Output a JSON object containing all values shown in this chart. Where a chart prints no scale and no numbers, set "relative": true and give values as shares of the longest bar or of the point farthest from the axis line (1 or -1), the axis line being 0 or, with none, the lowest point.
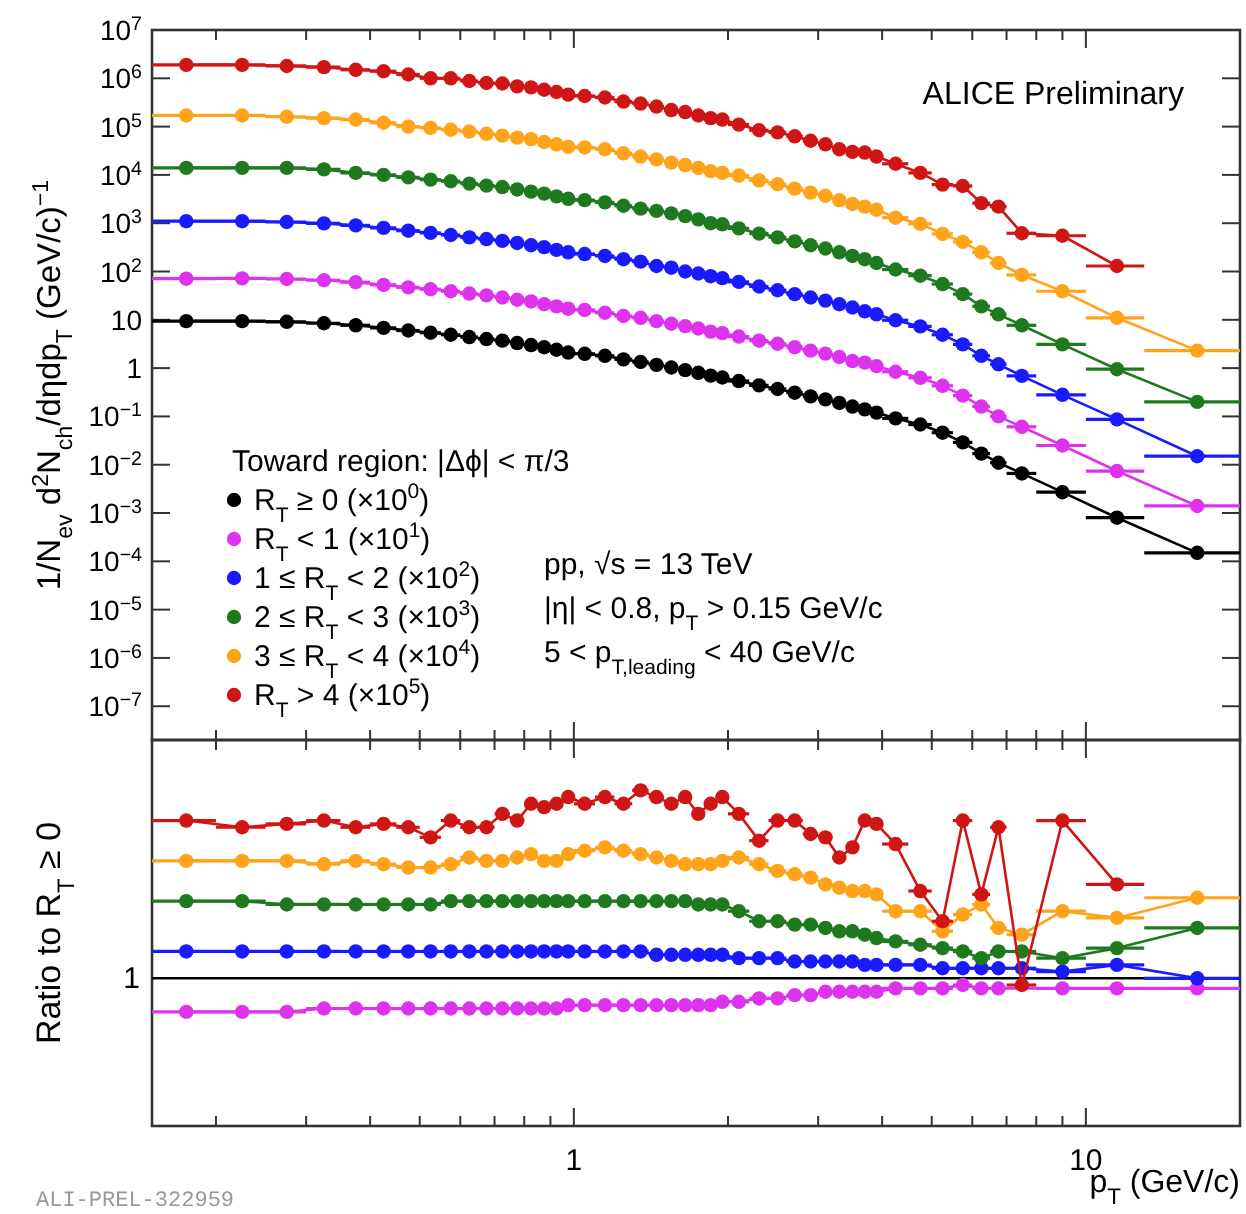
{
  "chart_data": [
    {
      "type": "line",
      "marker": "circle",
      "log": "xy",
      "tick_labels": "y",
      "legend": "bottom left",
      "ylabel": "1/N$_{ev}$ d$^{2}$N$_{ch}$/dηdp$_{T}$ (GeV/c)$^{−1}$",
      "legend_title": "Toward region: |Δϕ| < π/3",
      "annotations": [
        "ALICE Preliminary",
        "pp, √s = 13 TeV",
        "|η| < 0.8, p$_{T}$ > 0.15 GeV/c",
        "5 < p$_{T,leading}$ < 40 GeV/c"
      ],
      "xlim": [
        0.15,
        20
      ],
      "xticks": [
        {
          "value": 0.2,
          "label": null
        },
        {
          "value": 0.3,
          "label": null
        },
        {
          "value": 0.4,
          "label": null
        },
        {
          "value": 0.5,
          "label": null
        },
        {
          "value": 0.6,
          "label": null
        },
        {
          "value": 0.7,
          "label": null
        },
        {
          "value": 0.8,
          "label": null
        },
        {
          "value": 0.9,
          "label": null
        },
        {
          "value": 1,
          "label": null
        },
        {
          "value": 2,
          "label": null
        },
        {
          "value": 3,
          "label": null
        },
        {
          "value": 4,
          "label": null
        },
        {
          "value": 5,
          "label": null
        },
        {
          "value": 6,
          "label": null
        },
        {
          "value": 7,
          "label": null
        },
        {
          "value": 8,
          "label": null
        },
        {
          "value": 9,
          "label": null
        },
        {
          "value": 10,
          "label": null
        }
      ],
      "ylim": [
        2e-08,
        10000000.0
      ],
      "yticks": [
        {
          "value": 1e-07,
          "label": "10$^{−7}$"
        },
        {
          "value": 1e-06,
          "label": "10$^{−6}$"
        },
        {
          "value": 1e-05,
          "label": "10$^{−5}$"
        },
        {
          "value": 0.0001,
          "label": "10$^{−4}$"
        },
        {
          "value": 0.001,
          "label": "10$^{−3}$"
        },
        {
          "value": 0.01,
          "label": "10$^{−2}$"
        },
        {
          "value": 0.1,
          "label": "10$^{−1}$"
        },
        {
          "value": 1,
          "label": "1"
        },
        {
          "value": 10,
          "label": "10"
        },
        {
          "value": 100,
          "label": "10$^{2}$"
        },
        {
          "value": 1000,
          "label": "10$^{3}$"
        },
        {
          "value": 10000,
          "label": "10$^{4}$"
        },
        {
          "value": 100000,
          "label": "10$^{5}$"
        },
        {
          "value": 1000000,
          "label": "10$^{6}$"
        },
        {
          "value": 10000000,
          "label": "10$^{7}$"
        }
      ],
      "x": [
        0.175,
        0.225,
        0.275,
        0.325,
        0.375,
        0.425,
        0.475,
        0.525,
        0.575,
        0.625,
        0.675,
        0.725,
        0.775,
        0.825,
        0.875,
        0.925,
        0.975,
        1.05,
        1.15,
        1.25,
        1.35,
        1.45,
        1.55,
        1.65,
        1.75,
        1.85,
        1.95,
        2.1,
        2.3,
        2.5,
        2.7,
        2.9,
        3.1,
        3.3,
        3.5,
        3.7,
        3.9,
        4.25,
        4.75,
        5.25,
        5.75,
        6.25,
        6.75,
        7.5,
        9,
        11.5,
        16.5
      ],
      "series": [
        {
          "name": "R$_{T}$ ≥ 0 (×10$^{0}$)",
          "color": "#000000",
          "values": [
            9.4,
            9.4,
            9.1,
            8.5,
            7.7,
            6.8,
            6.0,
            5.4,
            4.9,
            4.4,
            4.0,
            3.7,
            3.3,
            3.0,
            2.7,
            2.4,
            2.1,
            1.98,
            1.8,
            1.52,
            1.34,
            1.17,
            1.03,
            0.91,
            0.8,
            0.7,
            0.64,
            0.54,
            0.44,
            0.37,
            0.31,
            0.26,
            0.225,
            0.19,
            0.16,
            0.14,
            0.12,
            0.091,
            0.068,
            0.046,
            0.029,
            0.017,
            0.011,
            0.0066,
            0.0027,
            0.0008,
            0.00015
          ],
          "xerrors": [
            0.025,
            0.025,
            0.025,
            0.025,
            0.025,
            0.025,
            0.025,
            0.025,
            0.025,
            0.025,
            0.025,
            0.025,
            0.025,
            0.025,
            0.025,
            0.025,
            0.025,
            0.05,
            0.05,
            0.05,
            0.05,
            0.05,
            0.05,
            0.05,
            0.05,
            0.05,
            0.05,
            0.1,
            0.1,
            0.1,
            0.1,
            0.1,
            0.1,
            0.1,
            0.1,
            0.1,
            0.1,
            0.25,
            0.25,
            0.25,
            0.25,
            0.25,
            0.25,
            0.5,
            1,
            1.5,
            3.5
          ]
        },
        {
          "name": "R$_{T}$ < 1 (×10$^{1}$)",
          "color": "#dd33ee",
          "values": [
            71,
            72,
            70,
            66,
            60,
            53,
            47,
            43,
            39,
            35,
            32,
            29,
            26,
            24,
            21,
            19,
            17,
            16,
            14,
            12,
            11,
            9.4,
            8.3,
            7.4,
            6.6,
            5.7,
            5.3,
            4.5,
            3.7,
            3.2,
            2.7,
            2.3,
            2.0,
            1.7,
            1.4,
            1.3,
            1.1,
            0.84,
            0.63,
            0.43,
            0.27,
            0.16,
            0.1,
            0.061,
            0.025,
            0.0074,
            0.0014
          ],
          "xerrors": [
            0.025,
            0.025,
            0.025,
            0.025,
            0.025,
            0.025,
            0.025,
            0.025,
            0.025,
            0.025,
            0.025,
            0.025,
            0.025,
            0.025,
            0.025,
            0.025,
            0.025,
            0.05,
            0.05,
            0.05,
            0.05,
            0.05,
            0.05,
            0.05,
            0.05,
            0.05,
            0.05,
            0.1,
            0.1,
            0.1,
            0.1,
            0.1,
            0.1,
            0.1,
            0.1,
            0.1,
            0.1,
            0.25,
            0.25,
            0.25,
            0.25,
            0.25,
            0.25,
            0.5,
            1,
            1.5,
            3.5
          ]
        },
        {
          "name": "1 ≤ R$_{T}$ < 2 (×10$^{2}$)",
          "color": "#1a1aff",
          "values": [
            1100,
            1100,
            1060,
            990,
            900,
            800,
            700,
            630,
            570,
            510,
            470,
            430,
            390,
            350,
            320,
            280,
            250,
            230,
            210,
            180,
            160,
            130,
            120,
            100,
            91,
            80,
            73,
            61,
            49,
            41,
            34,
            29,
            25,
            21,
            18,
            15,
            13,
            9.8,
            7.3,
            4.9,
            3.1,
            1.8,
            1.2,
            0.69,
            0.28,
            0.087,
            0.015
          ],
          "xerrors": [
            0.025,
            0.025,
            0.025,
            0.025,
            0.025,
            0.025,
            0.025,
            0.025,
            0.025,
            0.025,
            0.025,
            0.025,
            0.025,
            0.025,
            0.025,
            0.025,
            0.025,
            0.05,
            0.05,
            0.05,
            0.05,
            0.05,
            0.05,
            0.05,
            0.05,
            0.05,
            0.05,
            0.1,
            0.1,
            0.1,
            0.1,
            0.1,
            0.1,
            0.1,
            0.1,
            0.1,
            0.1,
            0.25,
            0.25,
            0.25,
            0.25,
            0.25,
            0.25,
            0.5,
            1,
            1.5,
            3.5
          ]
        },
        {
          "name": "2 ≤ R$_{T}$ < 3 (×10$^{3}$)",
          "color": "#1f7a1f",
          "values": [
            14000,
            14000,
            14000,
            13000,
            11000,
            10000,
            8900,
            8000,
            7400,
            6600,
            6000,
            5600,
            5000,
            4500,
            4100,
            3600,
            3200,
            3000,
            2700,
            2300,
            2000,
            1800,
            1600,
            1400,
            1200,
            1000,
            950,
            780,
            610,
            510,
            420,
            350,
            300,
            250,
            210,
            180,
            150,
            110,
            82,
            55,
            34,
            19,
            13,
            7.7,
            3.1,
            0.95,
            0.2
          ],
          "xerrors": [
            0.025,
            0.025,
            0.025,
            0.025,
            0.025,
            0.025,
            0.025,
            0.025,
            0.025,
            0.025,
            0.025,
            0.025,
            0.025,
            0.025,
            0.025,
            0.025,
            0.025,
            0.05,
            0.05,
            0.05,
            0.05,
            0.05,
            0.05,
            0.05,
            0.05,
            0.05,
            0.05,
            0.1,
            0.1,
            0.1,
            0.1,
            0.1,
            0.1,
            0.1,
            0.1,
            0.1,
            0.1,
            0.25,
            0.25,
            0.25,
            0.25,
            0.25,
            0.25,
            0.5,
            1,
            1.5,
            3.5
          ]
        },
        {
          "name": "3 ≤ R$_{T}$ < 4 (×10$^{4}$)",
          "color": "#ffa31a",
          "values": [
            170000,
            170000,
            160000,
            150000,
            140000,
            120000,
            100000,
            94000,
            86000,
            79000,
            71000,
            65000,
            59000,
            55000,
            48000,
            43000,
            38000,
            37000,
            34000,
            28000,
            24000,
            21000,
            18000,
            16000,
            14000,
            12000,
            11000,
            9700,
            7700,
            6400,
            5200,
            4300,
            3700,
            3000,
            2500,
            2200,
            1900,
            1300,
            970,
            600,
            410,
            250,
            150,
            85,
            39,
            11,
            2.3
          ],
          "xerrors": [
            0.025,
            0.025,
            0.025,
            0.025,
            0.025,
            0.025,
            0.025,
            0.025,
            0.025,
            0.025,
            0.025,
            0.025,
            0.025,
            0.025,
            0.025,
            0.025,
            0.025,
            0.05,
            0.05,
            0.05,
            0.05,
            0.05,
            0.05,
            0.05,
            0.05,
            0.05,
            0.05,
            0.1,
            0.1,
            0.1,
            0.1,
            0.1,
            0.1,
            0.1,
            0.1,
            0.1,
            0.1,
            0.25,
            0.25,
            0.25,
            0.25,
            0.25,
            0.25,
            0.5,
            1,
            1.5,
            3.5
          ]
        },
        {
          "name": "R$_{T}$ > 4 (×10$^{5}$)",
          "color": "#d01515",
          "values": [
            1900000,
            1900000,
            1800000,
            1700000,
            1500000,
            1400000,
            1200000,
            1000000,
            1000000,
            880000,
            800000,
            780000,
            680000,
            650000,
            580000,
            520000,
            460000,
            430000,
            400000,
            330000,
            300000,
            260000,
            220000,
            200000,
            170000,
            150000,
            140000,
            110000,
            84000,
            76000,
            63000,
            51000,
            43000,
            34000,
            30000,
            29000,
            24000,
            17000,
            11000,
            6300,
            5900,
            2600,
            2200,
            620,
            550,
            130,
            null
          ],
          "xerrors": [
            0.025,
            0.025,
            0.025,
            0.025,
            0.025,
            0.025,
            0.025,
            0.025,
            0.025,
            0.025,
            0.025,
            0.025,
            0.025,
            0.025,
            0.025,
            0.025,
            0.025,
            0.05,
            0.05,
            0.05,
            0.05,
            0.05,
            0.05,
            0.05,
            0.05,
            0.05,
            0.05,
            0.1,
            0.1,
            0.1,
            0.1,
            0.1,
            0.1,
            0.1,
            0.1,
            0.1,
            0.1,
            0.25,
            0.25,
            0.25,
            0.25,
            0.25,
            0.25,
            0.5,
            1,
            1.5,
            null
          ]
        }
      ]
    },
    {
      "type": "line",
      "marker": "circle",
      "log": "x",
      "relative": true,
      "tick_labels": "x",
      "xlabel": "p$_{T}$ (GeV/c)",
      "ylabel": "Ratio to R$_{T}$ ≥ 0",
      "annotations": [
        "ALI-PREL-322959",
        "1"
      ],
      "ref_lines": [
        {
          "axis": "y",
          "value": 0.44,
          "color": "#000000"
        }
      ],
      "xlim": [
        0.15,
        20
      ],
      "xticks": [
        {
          "value": 0.2,
          "label": null
        },
        {
          "value": 0.3,
          "label": null
        },
        {
          "value": 0.4,
          "label": null
        },
        {
          "value": 0.5,
          "label": null
        },
        {
          "value": 0.6,
          "label": null
        },
        {
          "value": 0.7,
          "label": null
        },
        {
          "value": 0.8,
          "label": null
        },
        {
          "value": 0.9,
          "label": null
        },
        {
          "value": 1,
          "label": "1"
        },
        {
          "value": 2,
          "label": null
        },
        {
          "value": 3,
          "label": null
        },
        {
          "value": 4,
          "label": null
        },
        {
          "value": 5,
          "label": null
        },
        {
          "value": 6,
          "label": null
        },
        {
          "value": 7,
          "label": null
        },
        {
          "value": 8,
          "label": null
        },
        {
          "value": 9,
          "label": null
        },
        {
          "value": 10,
          "label": "10"
        }
      ],
      "x": [
        0.175,
        0.225,
        0.275,
        0.325,
        0.375,
        0.425,
        0.475,
        0.525,
        0.575,
        0.625,
        0.675,
        0.725,
        0.775,
        0.825,
        0.875,
        0.925,
        0.975,
        1.05,
        1.15,
        1.25,
        1.35,
        1.45,
        1.55,
        1.65,
        1.75,
        1.85,
        1.95,
        2.1,
        2.3,
        2.5,
        2.7,
        2.9,
        3.1,
        3.3,
        3.5,
        3.7,
        3.9,
        4.25,
        4.75,
        5.25,
        5.75,
        6.25,
        6.75,
        7.5,
        9,
        11.5,
        16.5
      ],
      "series": [
        {
          "color": "#dd33ee",
          "values": [
            0.34,
            0.34,
            0.34,
            0.35,
            0.35,
            0.35,
            0.35,
            0.35,
            0.35,
            0.35,
            0.35,
            0.35,
            0.35,
            0.35,
            0.35,
            0.35,
            0.36,
            0.36,
            0.36,
            0.36,
            0.36,
            0.36,
            0.36,
            0.36,
            0.36,
            0.36,
            0.37,
            0.37,
            0.38,
            0.38,
            0.39,
            0.39,
            0.4,
            0.4,
            0.4,
            0.4,
            0.4,
            0.41,
            0.41,
            0.41,
            0.42,
            0.41,
            0.41,
            null,
            0.41,
            0.41,
            0.41
          ],
          "xerrors": [
            0.025,
            0.025,
            0.025,
            0.025,
            0.025,
            0.025,
            0.025,
            0.025,
            0.025,
            0.025,
            0.025,
            0.025,
            0.025,
            0.025,
            0.025,
            0.025,
            0.025,
            0.05,
            0.05,
            0.05,
            0.05,
            0.05,
            0.05,
            0.05,
            0.05,
            0.05,
            0.05,
            0.1,
            0.1,
            0.1,
            0.1,
            0.1,
            0.1,
            0.1,
            0.1,
            0.1,
            0.1,
            0.25,
            0.25,
            0.25,
            0.25,
            0.25,
            0.25,
            null,
            1,
            1.5,
            3.5
          ]
        },
        {
          "color": "#1a1aff",
          "values": [
            0.52,
            0.52,
            0.52,
            0.52,
            0.52,
            0.52,
            0.52,
            0.52,
            0.52,
            0.52,
            0.52,
            0.52,
            0.52,
            0.52,
            0.52,
            0.52,
            0.52,
            0.52,
            0.52,
            0.52,
            0.52,
            0.51,
            0.51,
            0.51,
            0.51,
            0.51,
            0.51,
            0.5,
            0.5,
            0.5,
            0.49,
            0.49,
            0.49,
            0.49,
            0.49,
            0.48,
            0.48,
            0.48,
            0.48,
            0.47,
            0.47,
            0.47,
            0.47,
            0.47,
            0.46,
            0.48,
            0.44
          ],
          "xerrors": [
            0.025,
            0.025,
            0.025,
            0.025,
            0.025,
            0.025,
            0.025,
            0.025,
            0.025,
            0.025,
            0.025,
            0.025,
            0.025,
            0.025,
            0.025,
            0.025,
            0.025,
            0.05,
            0.05,
            0.05,
            0.05,
            0.05,
            0.05,
            0.05,
            0.05,
            0.05,
            0.05,
            0.1,
            0.1,
            0.1,
            0.1,
            0.1,
            0.1,
            0.1,
            0.1,
            0.1,
            0.1,
            0.25,
            0.25,
            0.25,
            0.25,
            0.25,
            0.25,
            0.5,
            1,
            1.5,
            3.5
          ]
        },
        {
          "color": "#1f7a1f",
          "values": [
            0.67,
            0.67,
            0.66,
            0.66,
            0.66,
            0.66,
            0.66,
            0.66,
            0.67,
            0.67,
            0.67,
            0.67,
            0.67,
            0.67,
            0.67,
            0.67,
            0.67,
            0.67,
            0.67,
            0.67,
            0.67,
            0.67,
            0.67,
            0.67,
            0.66,
            0.66,
            0.66,
            0.64,
            0.61,
            0.61,
            0.6,
            0.6,
            0.59,
            0.58,
            0.58,
            0.57,
            0.56,
            0.55,
            0.54,
            0.53,
            0.52,
            0.5,
            0.52,
            0.52,
            0.5,
            0.53,
            0.59
          ],
          "xerrors": [
            0.025,
            0.025,
            0.025,
            0.025,
            0.025,
            0.025,
            0.025,
            0.025,
            0.025,
            0.025,
            0.025,
            0.025,
            0.025,
            0.025,
            0.025,
            0.025,
            0.025,
            0.05,
            0.05,
            0.05,
            0.05,
            0.05,
            0.05,
            0.05,
            0.05,
            0.05,
            0.05,
            0.1,
            0.1,
            0.1,
            0.1,
            0.1,
            0.1,
            0.1,
            0.1,
            0.1,
            0.1,
            0.25,
            0.25,
            0.25,
            0.25,
            0.25,
            0.25,
            0.5,
            1,
            1.5,
            3.5
          ]
        },
        {
          "color": "#ffa31a",
          "values": [
            0.79,
            0.79,
            0.79,
            0.78,
            0.79,
            0.78,
            0.77,
            0.77,
            0.78,
            0.8,
            0.79,
            0.79,
            0.8,
            0.81,
            0.79,
            0.79,
            0.81,
            0.82,
            0.83,
            0.82,
            0.81,
            0.8,
            0.79,
            0.78,
            0.78,
            0.78,
            0.79,
            0.8,
            0.78,
            0.76,
            0.75,
            0.74,
            0.72,
            0.71,
            0.7,
            0.7,
            0.69,
            0.64,
            0.64,
            0.58,
            0.63,
            0.66,
            0.59,
            0.57,
            0.64,
            0.62,
            0.68
          ],
          "xerrors": [
            0.025,
            0.025,
            0.025,
            0.025,
            0.025,
            0.025,
            0.025,
            0.025,
            0.025,
            0.025,
            0.025,
            0.025,
            0.025,
            0.025,
            0.025,
            0.025,
            0.025,
            0.05,
            0.05,
            0.05,
            0.05,
            0.05,
            0.05,
            0.05,
            0.05,
            0.05,
            0.05,
            0.1,
            0.1,
            0.1,
            0.1,
            0.1,
            0.1,
            0.1,
            0.1,
            0.1,
            0.1,
            0.25,
            0.25,
            0.25,
            0.25,
            0.25,
            0.25,
            0.5,
            1,
            1.5,
            3.5
          ]
        },
        {
          "color": "#d01515",
          "values": [
            0.91,
            0.89,
            0.9,
            0.91,
            0.89,
            0.9,
            0.89,
            0.86,
            0.91,
            0.89,
            0.89,
            0.93,
            0.91,
            0.96,
            0.95,
            0.96,
            0.98,
            0.96,
            0.98,
            0.96,
            1,
            0.98,
            0.96,
            0.98,
            0.93,
            0.96,
            0.98,
            0.93,
            0.85,
            0.91,
            0.91,
            0.87,
            0.86,
            0.8,
            0.83,
            0.91,
            0.9,
            0.84,
            0.7,
            0.61,
            0.91,
            0.69,
            0.89,
            0.42,
            0.91,
            0.72,
            null
          ],
          "xerrors": [
            0.025,
            0.025,
            0.025,
            0.025,
            0.025,
            0.025,
            0.025,
            0.025,
            0.025,
            0.025,
            0.025,
            0.025,
            0.025,
            0.025,
            0.025,
            0.025,
            0.025,
            0.05,
            0.05,
            0.05,
            0.05,
            0.05,
            0.05,
            0.05,
            0.05,
            0.05,
            0.05,
            0.1,
            0.1,
            0.1,
            0.1,
            0.1,
            0.1,
            0.1,
            0.1,
            0.1,
            0.1,
            0.25,
            0.25,
            0.25,
            0.25,
            0.25,
            0.25,
            0.5,
            1,
            1.5,
            null
          ]
        }
      ]
    }
  ]
}
